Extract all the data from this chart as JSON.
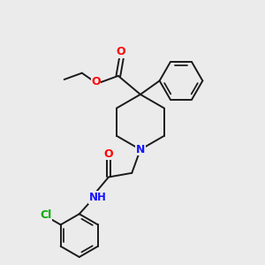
{
  "bg_color": "#ebebeb",
  "bond_color": "#1a1a1a",
  "N_color": "#1414ff",
  "O_color": "#ff0000",
  "Cl_color": "#00aa00",
  "lw": 1.4,
  "figsize": [
    3.0,
    3.0
  ],
  "dpi": 100,
  "xlim": [
    0,
    10
  ],
  "ylim": [
    0,
    10
  ]
}
